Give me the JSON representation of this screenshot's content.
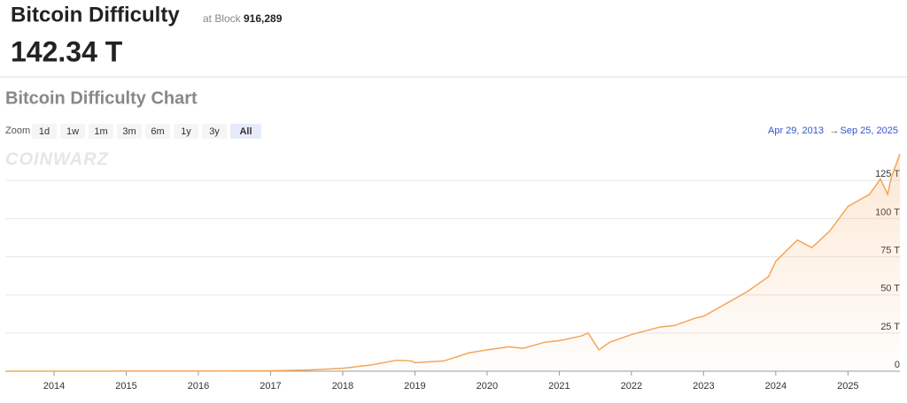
{
  "header": {
    "title": "Bitcoin Difficulty",
    "block_prefix": "at Block",
    "block": "916,289",
    "current": "142.34 T"
  },
  "chart_header": {
    "title": "Bitcoin Difficulty Chart",
    "zoom_label": "Zoom",
    "zoom_buttons": [
      "1d",
      "1w",
      "1m",
      "3m",
      "6m",
      "1y",
      "3y",
      "All"
    ],
    "range_from": "Apr 29, 2013",
    "range_to": "Sep 25, 2025",
    "watermark": "COINWARZ"
  },
  "chart_data": {
    "type": "area",
    "x": [
      2013.33,
      2014.0,
      2014.5,
      2015.0,
      2016.0,
      2017.0,
      2017.5,
      2018.0,
      2018.4,
      2018.75,
      2018.95,
      2019.0,
      2019.4,
      2019.75,
      2020.0,
      2020.3,
      2020.5,
      2020.8,
      2021.0,
      2021.3,
      2021.4,
      2021.55,
      2021.7,
      2022.0,
      2022.4,
      2022.6,
      2022.9,
      2023.0,
      2023.3,
      2023.6,
      2023.9,
      2024.0,
      2024.3,
      2024.5,
      2024.75,
      2025.0,
      2025.3,
      2025.45,
      2025.55,
      2025.6,
      2025.72
    ],
    "values": [
      1e-05,
      0.0014,
      0.012,
      0.04,
      0.1,
      0.3,
      0.7,
      1.9,
      4.1,
      7.2,
      6.7,
      5.6,
      6.7,
      12.0,
      14.0,
      16.0,
      15.0,
      19.0,
      20.0,
      23.0,
      25.0,
      14.0,
      19.0,
      24.0,
      29.0,
      30.0,
      35.0,
      36.0,
      44.0,
      52.0,
      62.0,
      72.0,
      86.0,
      81.0,
      92.0,
      108.0,
      116.0,
      126.0,
      116.0,
      127.0,
      142.34
    ],
    "color": "#f5a55a",
    "xlim": [
      2013.325,
      2025.72
    ],
    "xticks": [
      2014,
      2015,
      2016,
      2017,
      2018,
      2019,
      2020,
      2021,
      2022,
      2023,
      2024,
      2025
    ],
    "ylim": [
      0,
      146
    ],
    "yticks": [
      0,
      {
        "value": 25,
        "label": "25 T"
      },
      {
        "value": 50,
        "label": "50 T"
      },
      {
        "value": 75,
        "label": "75 T"
      },
      {
        "value": 100,
        "label": "100 T"
      },
      {
        "value": 125,
        "label": "125 T"
      }
    ],
    "grid": true
  }
}
